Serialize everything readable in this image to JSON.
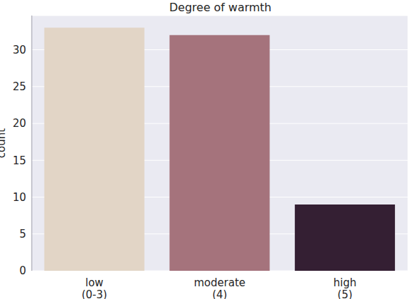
{
  "chart_data": {
    "type": "bar",
    "title": "Degree of warmth",
    "y_label": "count",
    "categories": [
      "low\n(0-3)",
      "moderate\n(4)",
      "high\n(5)"
    ],
    "values": [
      33,
      32,
      9
    ],
    "colors": [
      "#e2d5c6",
      "#a5737c",
      "#341f33"
    ],
    "ylim": [
      0,
      34.65
    ],
    "yticks": [
      0,
      5,
      10,
      15,
      20,
      25,
      30
    ],
    "grid": true
  }
}
